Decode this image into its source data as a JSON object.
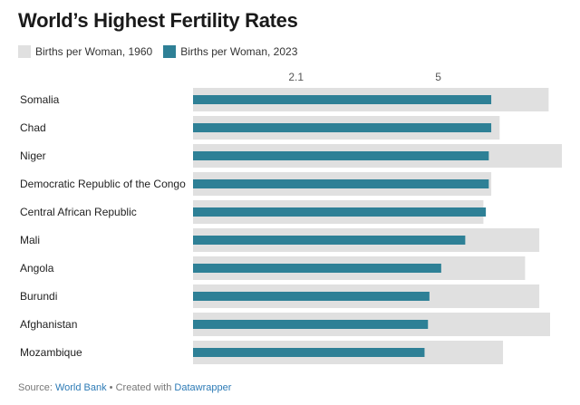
{
  "title": "World’s Highest Fertility Rates",
  "colors": {
    "series_1960": "#e0e0e0",
    "series_2023": "#2e8096"
  },
  "footer": {
    "source_prefix": "Source: ",
    "source_link": "World Bank",
    "separator": " • Created with ",
    "tool_link": "Datawrapper"
  },
  "chart_data": {
    "type": "bar",
    "orientation": "horizontal",
    "categories": [
      "Somalia",
      "Chad",
      "Niger",
      "Democratic Republic of the Congo",
      "Central African Republic",
      "Mali",
      "Angola",
      "Burundi",
      "Afghanistan",
      "Mozambique"
    ],
    "series": [
      {
        "name": "Births per Woman, 1960",
        "values": [
          7.25,
          6.25,
          7.52,
          6.08,
          5.92,
          7.06,
          6.77,
          7.06,
          7.28,
          6.32
        ]
      },
      {
        "name": "Births per Woman, 2023",
        "values": [
          6.08,
          6.08,
          6.03,
          6.03,
          5.97,
          5.55,
          5.06,
          4.82,
          4.79,
          4.72
        ]
      }
    ],
    "xticks": [
      2.1,
      5
    ],
    "xtick_labels": [
      "2.1",
      "5"
    ],
    "xlim": [
      0,
      7.52
    ],
    "grid": false,
    "legend": "top-left"
  }
}
